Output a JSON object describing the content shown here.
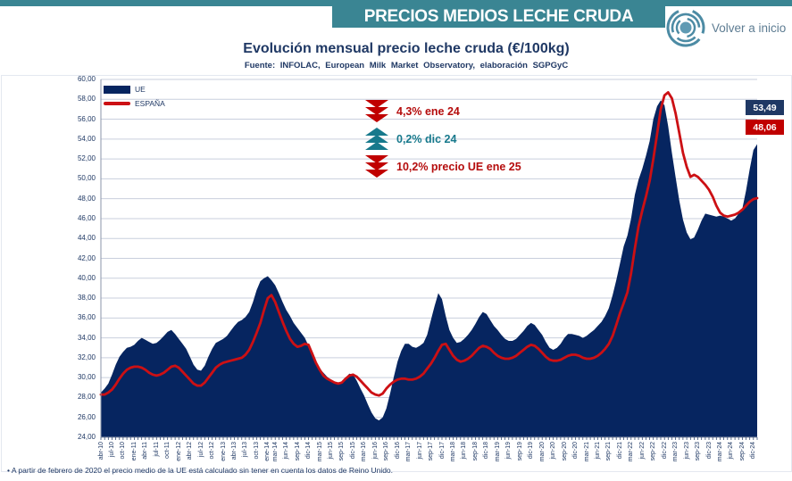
{
  "header": {
    "title": "PRECIOS MEDIOS LECHE CRUDA",
    "back_label": "Volver a inicio"
  },
  "chart": {
    "title": "Evolución mensual precio leche cruda (€/100kg)",
    "subtitle": "Fuente: INFOLAC, European Milk Market Observatory, elaboración SGPGyC",
    "annotations": [
      {
        "direction": "down",
        "color": "#b50d0d",
        "text": "4,3% ene 24"
      },
      {
        "direction": "up",
        "color": "#17798c",
        "text": "0,2% dic 24"
      },
      {
        "direction": "down",
        "color": "#b50d0d",
        "text": "10,2% precio UE ene 25"
      }
    ],
    "end_labels": [
      {
        "series": "UE",
        "value": "53,49",
        "bg": "#1f3864"
      },
      {
        "series": "ESPAÑA",
        "value": "48,06",
        "bg": "#c00000"
      }
    ]
  },
  "chart_data": {
    "type": "area",
    "title": "Evolución mensual precio leche cruda (€/100kg)",
    "x_start": "abr-10",
    "x_end": "ene-25",
    "ylim": [
      24,
      60
    ],
    "grid": true,
    "legend_position": "top-left",
    "y_ticks": [
      "60,00",
      "58,00",
      "56,00",
      "54,00",
      "52,00",
      "50,00",
      "48,00",
      "46,00",
      "44,00",
      "42,00",
      "40,00",
      "38,00",
      "36,00",
      "34,00",
      "32,00",
      "30,00",
      "28,00",
      "26,00",
      "24,00"
    ],
    "x_tick_labels": [
      "abr-10",
      "jul-10",
      "oct-10",
      "ene-11",
      "abr-11",
      "jul-11",
      "oct-11",
      "ene-12",
      "abr-12",
      "jul-12",
      "oct-12",
      "ene-13",
      "abr-13",
      "jul-13",
      "oct-13",
      "ene-14",
      "mar-14",
      "jun-14",
      "sep-14",
      "dic-14",
      "mar-15",
      "jun-15",
      "sep-15",
      "dic-15",
      "mar-16",
      "jun-16",
      "sep-16",
      "dic-16",
      "mar-17",
      "jun-17",
      "sep-17",
      "dic-17",
      "mar-18",
      "jun-18",
      "sep-18",
      "dic-18",
      "mar-19",
      "jun-19",
      "sep-19",
      "dic-19",
      "mar-20",
      "jun-20",
      "sep-20",
      "dic-20",
      "mar-21",
      "jun-21",
      "sep-21",
      "dic-21",
      "mar-22",
      "jun-22",
      "sep-22",
      "dic-22",
      "mar-23",
      "jun-23",
      "sep-23",
      "dic-23",
      "mar-24",
      "jun-24",
      "sep-24",
      "dic-24"
    ],
    "x_tick_indices": [
      0,
      3,
      6,
      9,
      12,
      15,
      18,
      21,
      24,
      27,
      30,
      33,
      36,
      39,
      42,
      45,
      47,
      50,
      53,
      56,
      59,
      62,
      65,
      68,
      71,
      74,
      77,
      80,
      83,
      86,
      89,
      92,
      95,
      98,
      101,
      104,
      107,
      110,
      113,
      116,
      119,
      122,
      125,
      128,
      131,
      134,
      137,
      140,
      143,
      146,
      149,
      152,
      155,
      158,
      161,
      164,
      167,
      170,
      173,
      176
    ],
    "series": [
      {
        "name": "UE",
        "type": "area",
        "color": "#062560",
        "values": [
          28.5,
          28.9,
          29.4,
          30.3,
          31.3,
          32.1,
          32.6,
          33.0,
          33.1,
          33.3,
          33.7,
          34.0,
          33.8,
          33.6,
          33.4,
          33.5,
          33.8,
          34.2,
          34.6,
          34.8,
          34.4,
          33.9,
          33.4,
          32.9,
          32.1,
          31.3,
          30.8,
          30.7,
          31.2,
          32.1,
          32.9,
          33.5,
          33.7,
          33.9,
          34.2,
          34.7,
          35.2,
          35.6,
          35.8,
          36.1,
          36.6,
          37.6,
          38.8,
          39.7,
          40.0,
          40.2,
          39.8,
          39.3,
          38.5,
          37.6,
          36.8,
          36.2,
          35.5,
          35.0,
          34.5,
          34.0,
          33.2,
          32.2,
          31.4,
          30.9,
          30.5,
          30.1,
          29.8,
          29.6,
          29.5,
          29.6,
          30.0,
          30.4,
          30.3,
          29.7,
          28.9,
          28.2,
          27.3,
          26.5,
          25.9,
          25.7,
          26.0,
          26.9,
          28.4,
          30.1,
          31.6,
          32.7,
          33.4,
          33.4,
          33.1,
          33.0,
          33.2,
          33.5,
          34.3,
          35.8,
          37.2,
          38.5,
          37.9,
          36.2,
          34.8,
          34.0,
          33.5,
          33.6,
          33.9,
          34.3,
          34.8,
          35.4,
          36.1,
          36.6,
          36.4,
          35.8,
          35.2,
          34.8,
          34.3,
          33.9,
          33.7,
          33.7,
          33.9,
          34.3,
          34.7,
          35.2,
          35.5,
          35.3,
          34.8,
          34.3,
          33.6,
          33.0,
          32.8,
          33.0,
          33.4,
          34.0,
          34.4,
          34.4,
          34.3,
          34.2,
          34.0,
          34.2,
          34.5,
          34.8,
          35.2,
          35.6,
          36.2,
          37.0,
          38.3,
          39.8,
          41.5,
          43.2,
          44.3,
          46.0,
          48.4,
          49.9,
          51.0,
          52.3,
          53.8,
          56.0,
          57.3,
          57.9,
          57.4,
          55.3,
          52.6,
          50.2,
          47.8,
          45.9,
          44.6,
          43.9,
          44.1,
          44.9,
          45.8,
          46.5,
          46.4,
          46.3,
          46.2,
          46.3,
          46.2,
          46.0,
          45.8,
          46.0,
          46.5,
          47.0,
          48.8,
          51.0,
          52.9,
          53.49
        ]
      },
      {
        "name": "ESPAÑA",
        "type": "line",
        "color": "#cc1014",
        "values": [
          28.3,
          28.3,
          28.5,
          28.8,
          29.3,
          29.9,
          30.4,
          30.8,
          31.0,
          31.1,
          31.1,
          31.0,
          30.8,
          30.5,
          30.3,
          30.2,
          30.3,
          30.5,
          30.8,
          31.1,
          31.2,
          31.0,
          30.6,
          30.2,
          29.8,
          29.4,
          29.2,
          29.2,
          29.5,
          30.0,
          30.5,
          31.0,
          31.3,
          31.5,
          31.6,
          31.7,
          31.8,
          31.9,
          32.0,
          32.3,
          32.8,
          33.6,
          34.5,
          35.5,
          36.8,
          38.0,
          38.3,
          37.6,
          36.6,
          35.6,
          34.7,
          33.9,
          33.4,
          33.1,
          33.2,
          33.4,
          33.3,
          32.4,
          31.5,
          30.8,
          30.2,
          29.9,
          29.7,
          29.5,
          29.4,
          29.5,
          29.9,
          30.2,
          30.3,
          30.1,
          29.7,
          29.3,
          28.9,
          28.5,
          28.3,
          28.2,
          28.4,
          28.9,
          29.3,
          29.6,
          29.8,
          29.9,
          29.9,
          29.8,
          29.8,
          29.9,
          30.1,
          30.4,
          30.9,
          31.4,
          32.0,
          32.7,
          33.3,
          33.4,
          32.8,
          32.2,
          31.8,
          31.6,
          31.7,
          31.9,
          32.2,
          32.6,
          33.0,
          33.2,
          33.1,
          32.9,
          32.5,
          32.2,
          32.0,
          31.9,
          31.9,
          32.0,
          32.2,
          32.5,
          32.8,
          33.1,
          33.3,
          33.2,
          32.9,
          32.5,
          32.1,
          31.8,
          31.7,
          31.7,
          31.8,
          32.0,
          32.2,
          32.3,
          32.3,
          32.2,
          32.0,
          31.9,
          31.9,
          32.0,
          32.2,
          32.5,
          32.9,
          33.4,
          34.2,
          35.3,
          36.5,
          37.5,
          38.6,
          40.5,
          43.0,
          45.2,
          46.8,
          48.2,
          49.8,
          52.0,
          54.5,
          57.0,
          58.4,
          58.7,
          58.1,
          56.6,
          54.6,
          52.6,
          51.2,
          50.2,
          50.4,
          50.2,
          49.8,
          49.4,
          48.9,
          48.2,
          47.3,
          46.6,
          46.3,
          46.2,
          46.3,
          46.4,
          46.6,
          46.9,
          47.3,
          47.7,
          47.96,
          48.06
        ]
      }
    ]
  },
  "footnote": "• A partir de febrero de 2020 el precio medio de la UE está calculado sin tener en cuenta los datos de Reino Unido."
}
